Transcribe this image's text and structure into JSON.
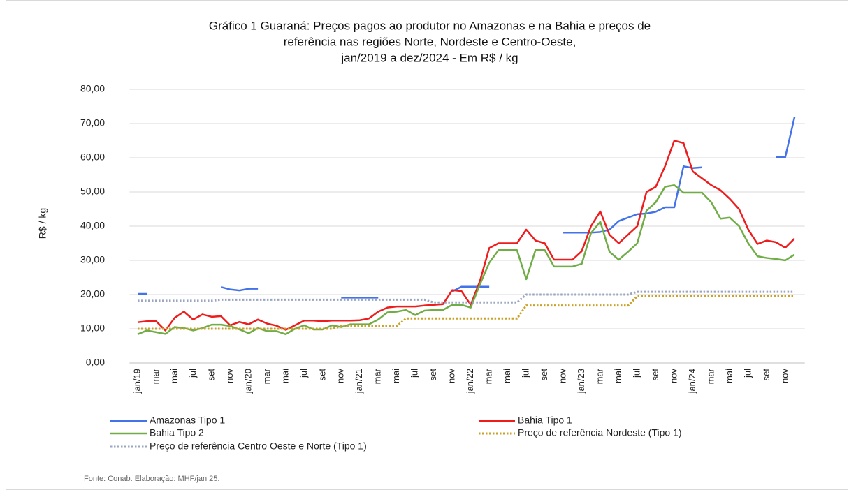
{
  "chart_data": {
    "type": "line",
    "title": [
      "Gráfico 1   Guaraná: Preços pagos ao produtor no Amazonas e na Bahia e preços de",
      "referência nas regiões Norte, Nordeste e Centro-Oeste,",
      "jan/2019 a dez/2024 - Em R$ / kg"
    ],
    "ylabel": "R$ / kg",
    "source": "Fonte: Conab. Elaboração: MHF/jan 25.",
    "categories": [
      "jan/19",
      null,
      "mar",
      null,
      "mai",
      null,
      "jul",
      null,
      "set",
      null,
      "nov",
      null,
      "jan/20",
      null,
      "mar",
      null,
      "mai",
      null,
      "jul",
      null,
      "set",
      null,
      "nov",
      null,
      "jan/21",
      null,
      "mar",
      null,
      "mai",
      null,
      "jul",
      null,
      "set",
      null,
      "nov",
      null,
      "jan/22",
      null,
      "mar",
      null,
      "mai",
      null,
      "jul",
      null,
      "set",
      null,
      "nov",
      null,
      "jan/23",
      null,
      "mar",
      null,
      "mai",
      null,
      "jul",
      null,
      "set",
      null,
      "nov",
      null,
      "jan/24",
      null,
      "mar",
      null,
      "mai",
      null,
      "jul",
      null,
      "set",
      null,
      "nov",
      null
    ],
    "ylim": [
      0,
      80
    ],
    "yticks": [
      {
        "value": 0,
        "label": "0,00"
      },
      {
        "value": 10,
        "label": "10,00"
      },
      {
        "value": 20,
        "label": "20,00"
      },
      {
        "value": 30,
        "label": "30,00"
      },
      {
        "value": 40,
        "label": "40,00"
      },
      {
        "value": 50,
        "label": "50,00"
      },
      {
        "value": 60,
        "label": "60,00"
      },
      {
        "value": 70,
        "label": "70,00"
      },
      {
        "value": 80,
        "label": "80,00"
      }
    ],
    "grid": true,
    "legend": "bottom",
    "series": [
      {
        "name": "Amazonas Tipo 1",
        "color": "#4472e8",
        "line_style": "solid",
        "values": [
          20.2,
          20.2,
          null,
          null,
          null,
          null,
          null,
          null,
          null,
          22.2,
          21.5,
          21.2,
          21.7,
          21.7,
          null,
          null,
          null,
          null,
          null,
          null,
          null,
          null,
          19.1,
          19.1,
          19.1,
          19.1,
          19.1,
          null,
          null,
          null,
          null,
          null,
          null,
          null,
          20.9,
          22.3,
          22.3,
          22.3,
          22.3,
          null,
          null,
          null,
          null,
          null,
          null,
          null,
          38.1,
          38.1,
          38.1,
          38.1,
          38.3,
          39.0,
          41.5,
          42.5,
          43.5,
          43.7,
          44.2,
          45.5,
          45.5,
          57.5,
          57.0,
          57.2,
          null,
          null,
          null,
          null,
          null,
          null,
          null,
          60.2,
          60.2,
          71.9
        ]
      },
      {
        "name": "Bahia Tipo 1",
        "color": "#ee1c1c",
        "line_style": "solid",
        "values": [
          11.9,
          12.2,
          12.2,
          9.5,
          13.2,
          15.0,
          12.7,
          14.2,
          13.5,
          13.7,
          11.0,
          12.0,
          11.3,
          12.7,
          11.5,
          10.9,
          9.7,
          11.0,
          12.4,
          12.4,
          12.2,
          12.4,
          12.4,
          12.4,
          12.5,
          13.0,
          15.0,
          16.2,
          16.5,
          16.5,
          16.5,
          16.8,
          17.0,
          17.2,
          21.3,
          21.0,
          17.0,
          24.0,
          33.6,
          35.0,
          35.0,
          35.0,
          39.0,
          35.8,
          35.0,
          30.2,
          30.2,
          30.2,
          32.7,
          40.0,
          44.3,
          37.5,
          35.0,
          37.5,
          40.0,
          50.0,
          51.5,
          57.5,
          65.0,
          64.3,
          56.0,
          54.0,
          52.0,
          50.5,
          48.0,
          45.0,
          39.0,
          34.8,
          35.8,
          35.3,
          33.7,
          36.4
        ]
      },
      {
        "name": "Bahia Tipo 2",
        "color": "#70ad47",
        "line_style": "solid",
        "values": [
          8.4,
          9.5,
          9.0,
          8.5,
          10.5,
          10.2,
          9.5,
          10.2,
          11.2,
          11.2,
          10.8,
          9.8,
          8.7,
          10.2,
          9.3,
          9.3,
          8.4,
          10.0,
          11.0,
          9.8,
          9.8,
          11.0,
          10.5,
          11.3,
          11.3,
          11.3,
          12.7,
          14.8,
          15.0,
          15.5,
          14.0,
          15.3,
          15.5,
          15.5,
          17.0,
          17.0,
          16.2,
          23.0,
          29.3,
          33.0,
          33.0,
          33.0,
          24.5,
          33.0,
          33.0,
          28.2,
          28.2,
          28.2,
          29.0,
          38.0,
          41.3,
          32.5,
          30.2,
          32.5,
          35.0,
          44.5,
          47.0,
          51.5,
          52.0,
          49.8,
          49.8,
          49.8,
          47.0,
          42.2,
          42.5,
          40.0,
          35.0,
          31.2,
          30.7,
          30.4,
          30.0,
          31.7
        ]
      },
      {
        "name": "Preço de referência Nordeste (Tipo 1)",
        "color": "#c9a227",
        "line_style": "dotted",
        "values": [
          10.0,
          10.0,
          10.0,
          10.0,
          10.0,
          10.0,
          10.0,
          10.0,
          10.0,
          10.0,
          10.0,
          10.0,
          10.0,
          10.0,
          10.0,
          10.0,
          10.0,
          10.0,
          10.0,
          10.0,
          10.0,
          10.0,
          10.8,
          10.8,
          10.8,
          10.8,
          10.8,
          10.8,
          10.8,
          13.0,
          13.0,
          13.0,
          13.0,
          13.0,
          13.0,
          13.0,
          13.0,
          13.0,
          13.0,
          13.0,
          13.0,
          13.0,
          16.8,
          16.8,
          16.8,
          16.8,
          16.8,
          16.8,
          16.8,
          16.8,
          16.8,
          16.8,
          16.8,
          16.8,
          19.5,
          19.5,
          19.5,
          19.5,
          19.5,
          19.5,
          19.5,
          19.5,
          19.5,
          19.5,
          19.5,
          19.5,
          19.5,
          19.5,
          19.5,
          19.5,
          19.5,
          19.5
        ]
      },
      {
        "name": "Preço de referência Centro Oeste e Norte (Tipo 1)",
        "color": "#9aa5bf",
        "line_style": "dotted",
        "values": [
          18.2,
          18.2,
          18.2,
          18.2,
          18.2,
          18.2,
          18.2,
          18.2,
          18.2,
          18.5,
          18.5,
          18.5,
          18.5,
          18.5,
          18.5,
          18.5,
          18.5,
          18.5,
          18.5,
          18.5,
          18.5,
          18.5,
          18.5,
          18.5,
          18.5,
          18.5,
          18.5,
          18.5,
          18.5,
          18.5,
          18.5,
          18.5,
          17.7,
          17.7,
          17.7,
          17.7,
          17.7,
          17.7,
          17.7,
          17.7,
          17.7,
          17.7,
          20.0,
          20.0,
          20.0,
          20.0,
          20.0,
          20.0,
          20.0,
          20.0,
          20.0,
          20.0,
          20.0,
          20.0,
          20.8,
          20.8,
          20.8,
          20.8,
          20.8,
          20.8,
          20.8,
          20.8,
          20.8,
          20.8,
          20.8,
          20.8,
          20.8,
          20.8,
          20.8,
          20.8,
          20.8,
          20.8
        ]
      }
    ]
  }
}
